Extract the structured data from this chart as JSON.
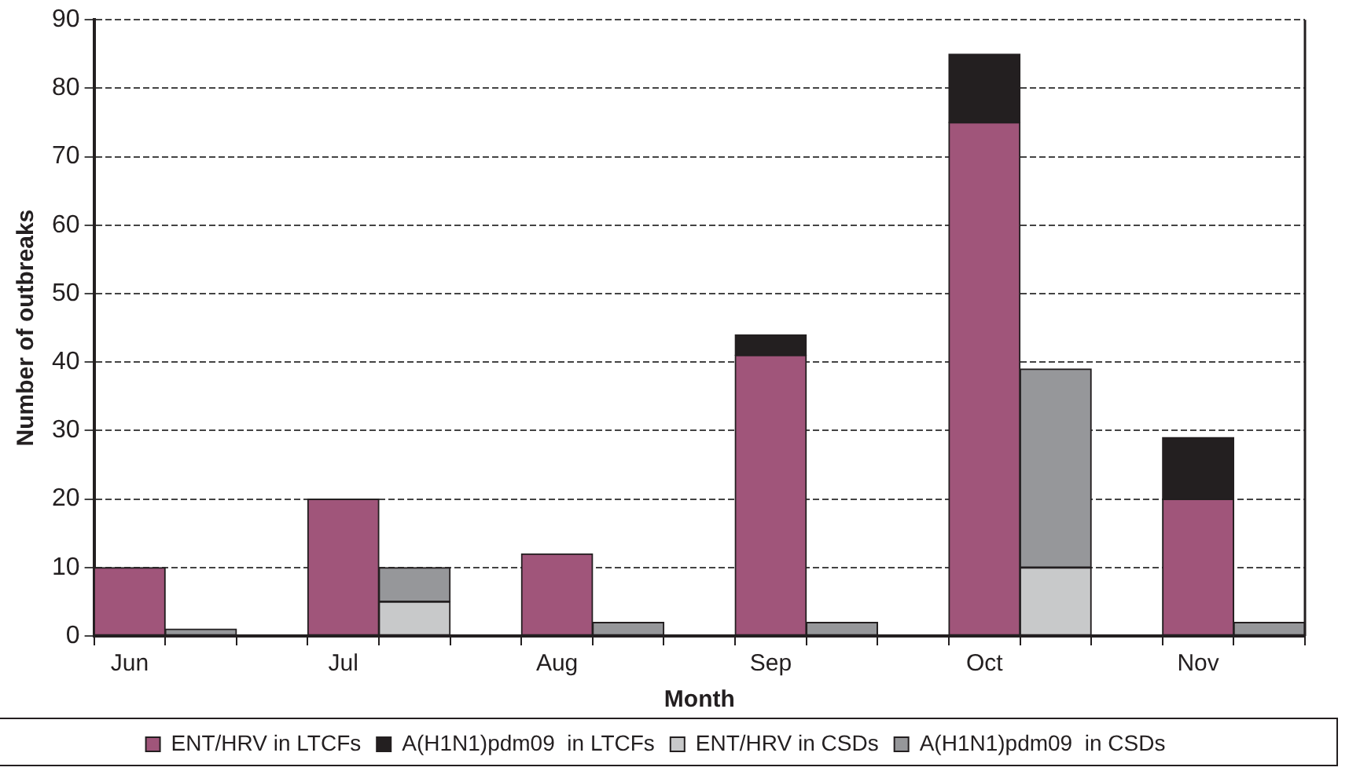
{
  "chart_data": {
    "type": "bar",
    "xlabel": "Month",
    "ylabel": "Number of outbreaks",
    "categories": [
      "Jun",
      null,
      null,
      "Jul",
      null,
      null,
      "Aug",
      null,
      null,
      "Sep",
      null,
      null,
      "Oct",
      null,
      null,
      "Nov",
      null
    ],
    "stacked": true,
    "series": [
      {
        "name": "ENT/HRV in LTCFs",
        "color": "#a0557a",
        "values": [
          10,
          null,
          null,
          20,
          null,
          null,
          12,
          null,
          null,
          41,
          null,
          null,
          75,
          null,
          null,
          20,
          null
        ]
      },
      {
        "name": "A(H1N1)pdm09  in LTCFs",
        "color": "#231f20",
        "values": [
          0,
          null,
          null,
          0,
          null,
          null,
          0,
          null,
          null,
          3,
          null,
          null,
          10,
          null,
          null,
          9,
          null
        ]
      },
      {
        "name": "ENT/HRV in CSDs",
        "color": "#c8c9ca",
        "values": [
          null,
          0,
          null,
          null,
          5,
          null,
          null,
          0,
          null,
          null,
          0,
          null,
          null,
          10,
          null,
          null,
          0
        ]
      },
      {
        "name": "A(H1N1)pdm09  in CSDs",
        "color": "#96979a",
        "values": [
          null,
          1,
          null,
          null,
          5,
          null,
          null,
          2,
          null,
          null,
          2,
          null,
          null,
          29,
          null,
          null,
          2
        ]
      }
    ],
    "ylim": [
      0,
      90
    ],
    "yticks": [
      0,
      10,
      20,
      30,
      40,
      50,
      60,
      70,
      80,
      90
    ],
    "grid": "y",
    "legend": "bottom"
  }
}
